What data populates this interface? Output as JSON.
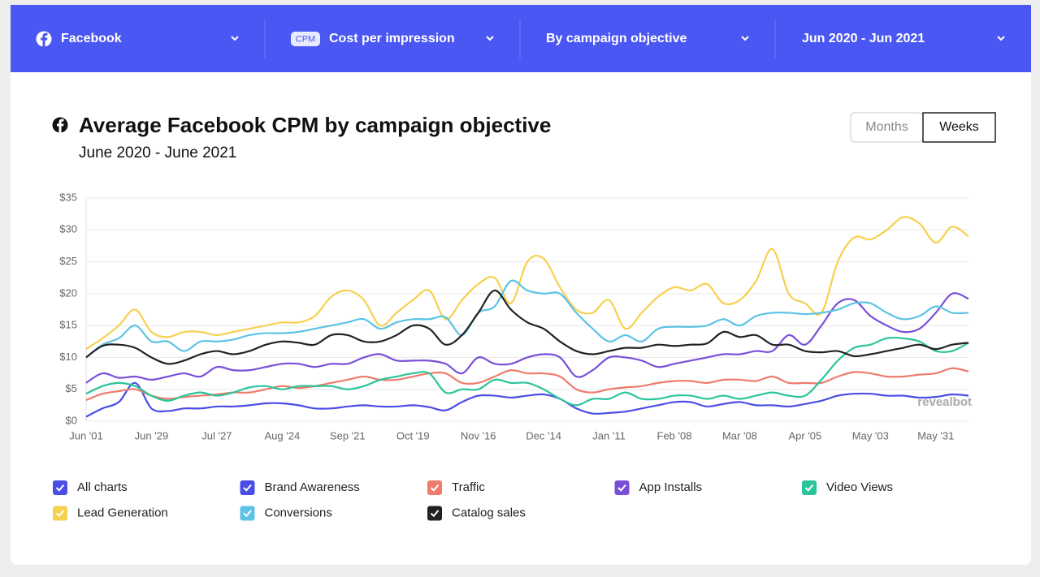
{
  "toolbar": {
    "filters": [
      {
        "label": "Facebook"
      },
      {
        "badge": "CPM",
        "label": "Cost per impression"
      },
      {
        "label": "By campaign objective"
      },
      {
        "label": "Jun 2020 - Jun 2021"
      }
    ]
  },
  "view_toggle": {
    "options": [
      "Months",
      "Weeks"
    ],
    "selected": 1
  },
  "legend": {
    "all_label": "All charts"
  },
  "watermark": "revealbot",
  "chart_data": {
    "type": "line",
    "title": "Average Facebook CPM by campaign objective",
    "subtitle": "June 2020 - June 2021",
    "categories": [
      "Jun '01",
      null,
      null,
      null,
      "Jun '29",
      null,
      null,
      null,
      "Jul '27",
      null,
      null,
      null,
      "Aug '24",
      null,
      null,
      null,
      "Sep '21",
      null,
      null,
      null,
      "Oct '19",
      null,
      null,
      null,
      "Nov '16",
      null,
      null,
      null,
      "Dec '14",
      null,
      null,
      null,
      "Jan '11",
      null,
      null,
      null,
      "Feb '08",
      null,
      null,
      null,
      "Mar '08",
      null,
      null,
      null,
      "Apr '05",
      null,
      null,
      null,
      "May '03",
      null,
      null,
      null,
      "May '31",
      null,
      null
    ],
    "ylim": [
      0,
      35
    ],
    "yticks": [
      {
        "value": 0,
        "label": "$0"
      },
      {
        "value": 5,
        "label": "$5"
      },
      {
        "value": 10,
        "label": "$10"
      },
      {
        "value": 15,
        "label": "$15"
      },
      {
        "value": 20,
        "label": "$20"
      },
      {
        "value": 25,
        "label": "$25"
      },
      {
        "value": 30,
        "label": "$30"
      },
      {
        "value": 35,
        "label": "$35"
      }
    ],
    "grid": true,
    "series": [
      {
        "name": "Brand Awareness",
        "color": "#4a4de6",
        "values": [
          0.7,
          2,
          3,
          6,
          2,
          1.6,
          2,
          2,
          2.3,
          2.3,
          2.5,
          2.8,
          2.8,
          2.5,
          2,
          2,
          2.3,
          2.5,
          2.3,
          2.3,
          2.5,
          2.2,
          1.7,
          3,
          4,
          4,
          3.7,
          4,
          4.2,
          3.5,
          2,
          1.2,
          1.3,
          1.5,
          2,
          2.5,
          3,
          3,
          2.3,
          2.7,
          3,
          2.5,
          2.5,
          2.3,
          2.7,
          3.2,
          4,
          4.3,
          4.3,
          4,
          4,
          3.7,
          3.8,
          4.2,
          4
        ]
      },
      {
        "name": "Traffic",
        "color": "#ee7b6c",
        "values": [
          3.3,
          4.3,
          4.7,
          5,
          4,
          3.5,
          3.8,
          4,
          4.2,
          4.5,
          4.5,
          5,
          5.5,
          5.2,
          5.5,
          6,
          6.5,
          7,
          6.5,
          6.5,
          7,
          7.5,
          7.5,
          6,
          6,
          7,
          8,
          7.5,
          7.5,
          7,
          5,
          4.5,
          5,
          5.3,
          5.5,
          6,
          6.3,
          6.3,
          6,
          6.5,
          6.5,
          6.3,
          7,
          6,
          6,
          6,
          7,
          7.7,
          7.5,
          7,
          7,
          7.3,
          7.5,
          8.3,
          7.8
        ]
      },
      {
        "name": "App Installs",
        "color": "#7a4fd8",
        "values": [
          6,
          7.5,
          6.8,
          7,
          6.5,
          7,
          7.5,
          7,
          8.5,
          8,
          8,
          8.5,
          9,
          9,
          8.5,
          9,
          9,
          10,
          10.5,
          9.5,
          9.5,
          9.5,
          9,
          7.5,
          10,
          9,
          9,
          10,
          10.5,
          10,
          7,
          8,
          10,
          10,
          9.5,
          8.5,
          9,
          9.5,
          10,
          10.5,
          10.5,
          11,
          11,
          13.5,
          12,
          15,
          18.5,
          19,
          16.5,
          15,
          14,
          14.5,
          17,
          20,
          19.2
        ]
      },
      {
        "name": "Video Views",
        "color": "#2bc49a",
        "values": [
          4.3,
          5.5,
          6,
          5.5,
          4,
          3.2,
          4,
          4.5,
          4,
          4.5,
          5.3,
          5.5,
          5,
          5.5,
          5.5,
          5.5,
          5,
          5.5,
          6.5,
          7,
          7.5,
          7.5,
          4.5,
          5,
          5,
          6.5,
          6,
          6,
          5,
          3.5,
          2.5,
          3.5,
          3.5,
          4.5,
          3.5,
          3.5,
          4,
          4,
          3.5,
          4,
          3.5,
          4,
          4.5,
          4,
          4,
          6.5,
          9.5,
          11.5,
          12,
          13,
          13,
          12.5,
          11,
          11,
          12.3
        ]
      },
      {
        "name": "Lead Generation",
        "color": "#f7d04e",
        "values": [
          11.3,
          13,
          15,
          17.5,
          14,
          13.2,
          14,
          14,
          13.5,
          14,
          14.5,
          15,
          15.5,
          15.5,
          16.5,
          19.5,
          20.5,
          19,
          15,
          17,
          19,
          20.5,
          16,
          19,
          21.5,
          22.5,
          18.5,
          25,
          25.5,
          21,
          17.5,
          17,
          19,
          14.5,
          17,
          19.5,
          21,
          20.5,
          21.5,
          18.5,
          19,
          22,
          27,
          20,
          18.5,
          17,
          25,
          28.8,
          28.5,
          30,
          32,
          31,
          28,
          30.5,
          29
        ]
      },
      {
        "name": "Conversions",
        "color": "#5cc3e6",
        "values": [
          10,
          12,
          13,
          15,
          12.5,
          12.5,
          11,
          12.5,
          12.5,
          12.8,
          13.5,
          13.8,
          13.8,
          14,
          14.5,
          15,
          15.5,
          16,
          14.5,
          15.5,
          16,
          16,
          16.3,
          13.5,
          17,
          18,
          22,
          20.5,
          20,
          20,
          17,
          14.5,
          12.5,
          13.5,
          12.5,
          14.5,
          14.8,
          14.8,
          15,
          16,
          15,
          16.5,
          17,
          17,
          16.8,
          17,
          17.5,
          18.5,
          18.5,
          17,
          16,
          16.5,
          18,
          17,
          17
        ]
      },
      {
        "name": "Catalog sales",
        "color": "#222222",
        "values": [
          10,
          11.8,
          12,
          11.5,
          10,
          9,
          9.5,
          10.5,
          11,
          10.5,
          11,
          12,
          12.5,
          12.3,
          12,
          13.5,
          13.5,
          12.5,
          12.5,
          13.5,
          15,
          14.5,
          12,
          13.5,
          17,
          20.5,
          17.5,
          15.5,
          14.5,
          12.5,
          11,
          10.5,
          11,
          11.5,
          11.5,
          12,
          11.8,
          12,
          12.2,
          14,
          13.2,
          13.5,
          12,
          12,
          11,
          10.8,
          11,
          10.2,
          10.5,
          11,
          11.5,
          12,
          11.3,
          12,
          12.3
        ]
      }
    ]
  }
}
